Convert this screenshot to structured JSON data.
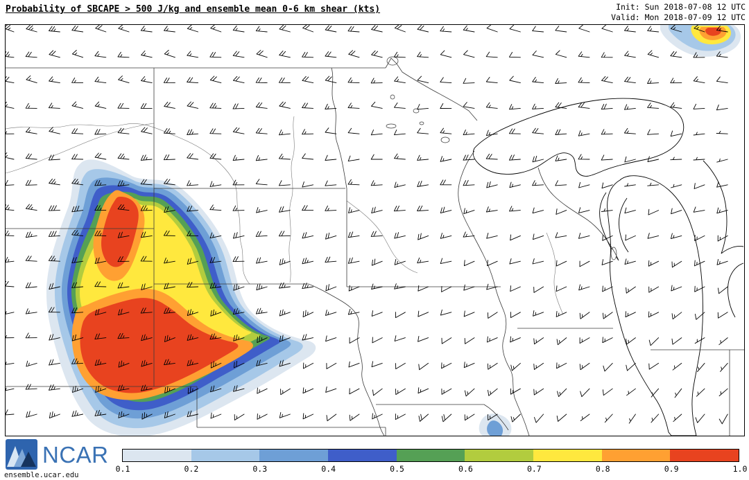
{
  "header": {
    "title": "Probability of SBCAPE > 500 J/kg and ensemble mean 0-6 km shear (kts)",
    "init": "Init: Sun 2018-07-08 12 UTC",
    "valid": "Valid: Mon 2018-07-09 12 UTC"
  },
  "colorbar": {
    "tick_labels": [
      "0.1",
      "0.2",
      "0.3",
      "0.4",
      "0.5",
      "0.6",
      "0.7",
      "0.8",
      "0.9",
      "1.0"
    ],
    "colors": [
      "#dce6f0",
      "#a6c8e8",
      "#6e9fd6",
      "#3f5ec9",
      "#55a055",
      "#b2cc3e",
      "#ffe83e",
      "#ffa032",
      "#e8431f"
    ]
  },
  "map": {
    "wind_barb_units": "kts",
    "probability_field": "SBCAPE > 500 J/kg"
  },
  "footer": {
    "logo": "NCAR",
    "url": "ensemble.ucar.edu"
  }
}
